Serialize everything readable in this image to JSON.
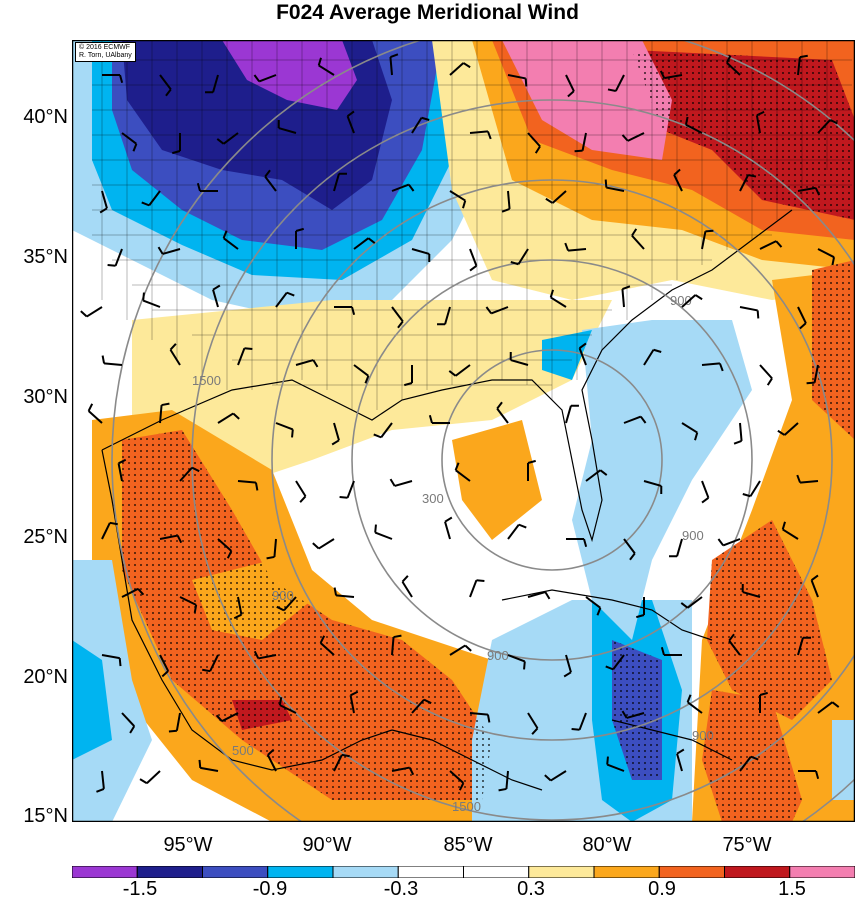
{
  "title": "F024 Average Meridional Wind",
  "credit": [
    "© 2016 ECMWF",
    "R. Torn, UAlbany"
  ],
  "lat_labels": [
    "40°N",
    "35°N",
    "30°N",
    "25°N",
    "20°N",
    "15°N"
  ],
  "lon_labels": [
    "95°W",
    "90°W",
    "85°W",
    "80°W",
    "75°W"
  ],
  "colorbar": {
    "labels": [
      "-1.5",
      "-0.9",
      "-0.3",
      "0.3",
      "0.9",
      "1.5"
    ],
    "colors": [
      "#9b37d3",
      "#1e1e8c",
      "#3c4ec0",
      "#00b4f0",
      "#a6daf6",
      "#ffffff",
      "#ffffff",
      "#fde99a",
      "#fba71c",
      "#f2631f",
      "#c0181e",
      "#f37eb0"
    ]
  },
  "contour_labels": [
    "300",
    "900",
    "900",
    "900",
    "900",
    "900",
    "1500",
    "500",
    "1500"
  ],
  "map_colors": {
    "dark_purple": "#1e1e8c",
    "blue": "#3c4ec0",
    "cyan": "#00b4f0",
    "light_blue": "#a6daf6",
    "yellow": "#fde99a",
    "orange": "#fba71c",
    "red_orange": "#f2631f",
    "dark_red": "#c0181e",
    "pink": "#f37eb0",
    "purple": "#9b37d3"
  }
}
